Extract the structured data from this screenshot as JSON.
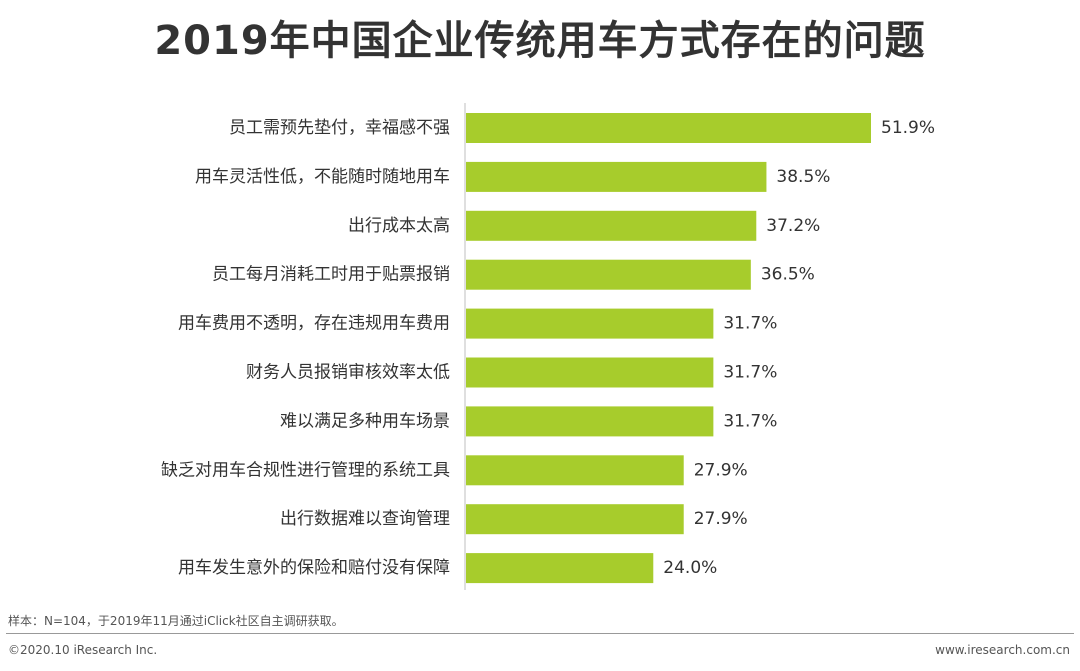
{
  "page": {
    "footnote": "样本：N=104，于2019年11月通过iClick社区自主调研获取。",
    "copyright": "©2020.10 iResearch Inc.",
    "website": "www.iresearch.com.cn"
  },
  "colors": {
    "bar": "#a7cc2c",
    "axis": "#bfbfbf",
    "text": "#333333"
  },
  "chart_data": {
    "type": "bar",
    "orientation": "horizontal",
    "title": "2019年中国企业传统用车方式存在的问题",
    "xlim": [
      0,
      60
    ],
    "grid": false,
    "categories": [
      "员工需预先垫付，幸福感不强",
      "用车灵活性低，不能随时随地用车",
      "出行成本太高",
      "员工每月消耗工时用于贴票报销",
      "用车费用不透明，存在违规用车费用",
      "财务人员报销审核效率太低",
      "难以满足多种用车场景",
      "缺乏对用车合规性进行管理的系统工具",
      "出行数据难以查询管理",
      "用车发生意外的保险和赔付没有保障"
    ],
    "values": [
      51.9,
      38.5,
      37.2,
      36.5,
      31.7,
      31.7,
      31.7,
      27.9,
      27.9,
      24.0
    ],
    "data_labels": [
      "51.9%",
      "38.5%",
      "37.2%",
      "36.5%",
      "31.7%",
      "31.7%",
      "31.7%",
      "27.9%",
      "27.9%",
      "24.0%"
    ]
  }
}
